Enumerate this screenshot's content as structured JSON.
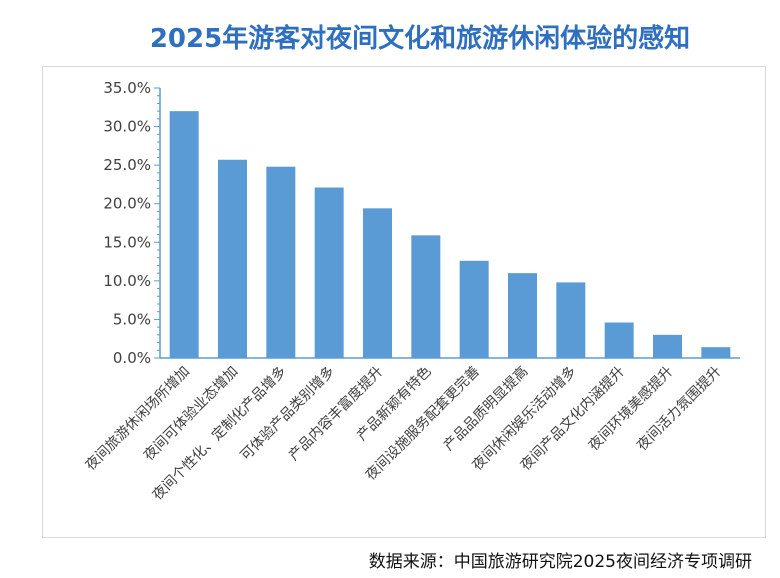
{
  "title": "2025年游客对夜间文化和旅游休闲体验的感知",
  "source": "数据来源：中国旅游研究院2025夜间经济专项调研",
  "colors": {
    "bar": "#5b9bd5",
    "title": "#2e6fbf",
    "axis": "#5b9bd5"
  },
  "chart_data": {
    "type": "bar",
    "title": "2025年游客对夜间文化和旅游休闲体验的感知",
    "xlabel": "",
    "ylabel": "",
    "ylim": [
      0,
      35
    ],
    "y_ticks": [
      "0.0%",
      "5.0%",
      "10.0%",
      "15.0%",
      "20.0%",
      "25.0%",
      "30.0%",
      "35.0%"
    ],
    "grid": false,
    "categories": [
      "夜间旅游休闲场所增加",
      "夜间可体验业态增加",
      "夜间个性化、定制化产品增多",
      "可体验产品类别增多",
      "产品内容丰富度提升",
      "产品新颖有特色",
      "夜间设施服务配套更完善",
      "产品品质明显提高",
      "夜间休闲娱乐活动增多",
      "夜间产品文化内涵提升",
      "夜间环境美感提升",
      "夜间活力氛围提升"
    ],
    "values": [
      32.0,
      25.7,
      24.8,
      22.1,
      19.4,
      15.9,
      12.6,
      11.0,
      9.8,
      4.6,
      3.0,
      1.4
    ]
  }
}
